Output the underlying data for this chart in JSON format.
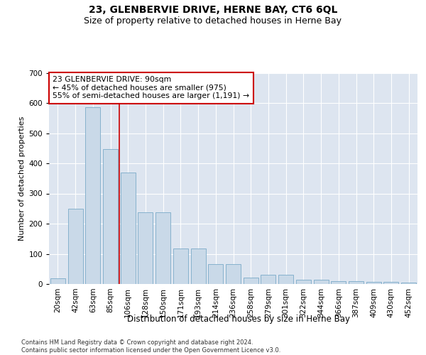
{
  "title": "23, GLENBERVIE DRIVE, HERNE BAY, CT6 6QL",
  "subtitle": "Size of property relative to detached houses in Herne Bay",
  "xlabel": "Distribution of detached houses by size in Herne Bay",
  "ylabel": "Number of detached properties",
  "categories": [
    "20sqm",
    "42sqm",
    "63sqm",
    "85sqm",
    "106sqm",
    "128sqm",
    "150sqm",
    "171sqm",
    "193sqm",
    "214sqm",
    "236sqm",
    "258sqm",
    "279sqm",
    "301sqm",
    "322sqm",
    "344sqm",
    "366sqm",
    "387sqm",
    "409sqm",
    "430sqm",
    "452sqm"
  ],
  "values": [
    18,
    250,
    585,
    448,
    370,
    238,
    238,
    118,
    118,
    65,
    65,
    22,
    30,
    30,
    14,
    14,
    10,
    10,
    7,
    7,
    5
  ],
  "bar_color": "#c9d9e8",
  "bar_edge_color": "#7aaac8",
  "vline_color": "#cc0000",
  "annotation_text": "23 GLENBERVIE DRIVE: 90sqm\n← 45% of detached houses are smaller (975)\n55% of semi-detached houses are larger (1,191) →",
  "annotation_box_color": "#ffffff",
  "annotation_box_edge": "#cc0000",
  "ylim": [
    0,
    700
  ],
  "yticks": [
    0,
    100,
    200,
    300,
    400,
    500,
    600,
    700
  ],
  "footer": "Contains HM Land Registry data © Crown copyright and database right 2024.\nContains public sector information licensed under the Open Government Licence v3.0.",
  "background_color": "#dde5f0",
  "title_fontsize": 10,
  "subtitle_fontsize": 9,
  "xlabel_fontsize": 8.5,
  "ylabel_fontsize": 8,
  "tick_fontsize": 7.5,
  "footer_fontsize": 6
}
